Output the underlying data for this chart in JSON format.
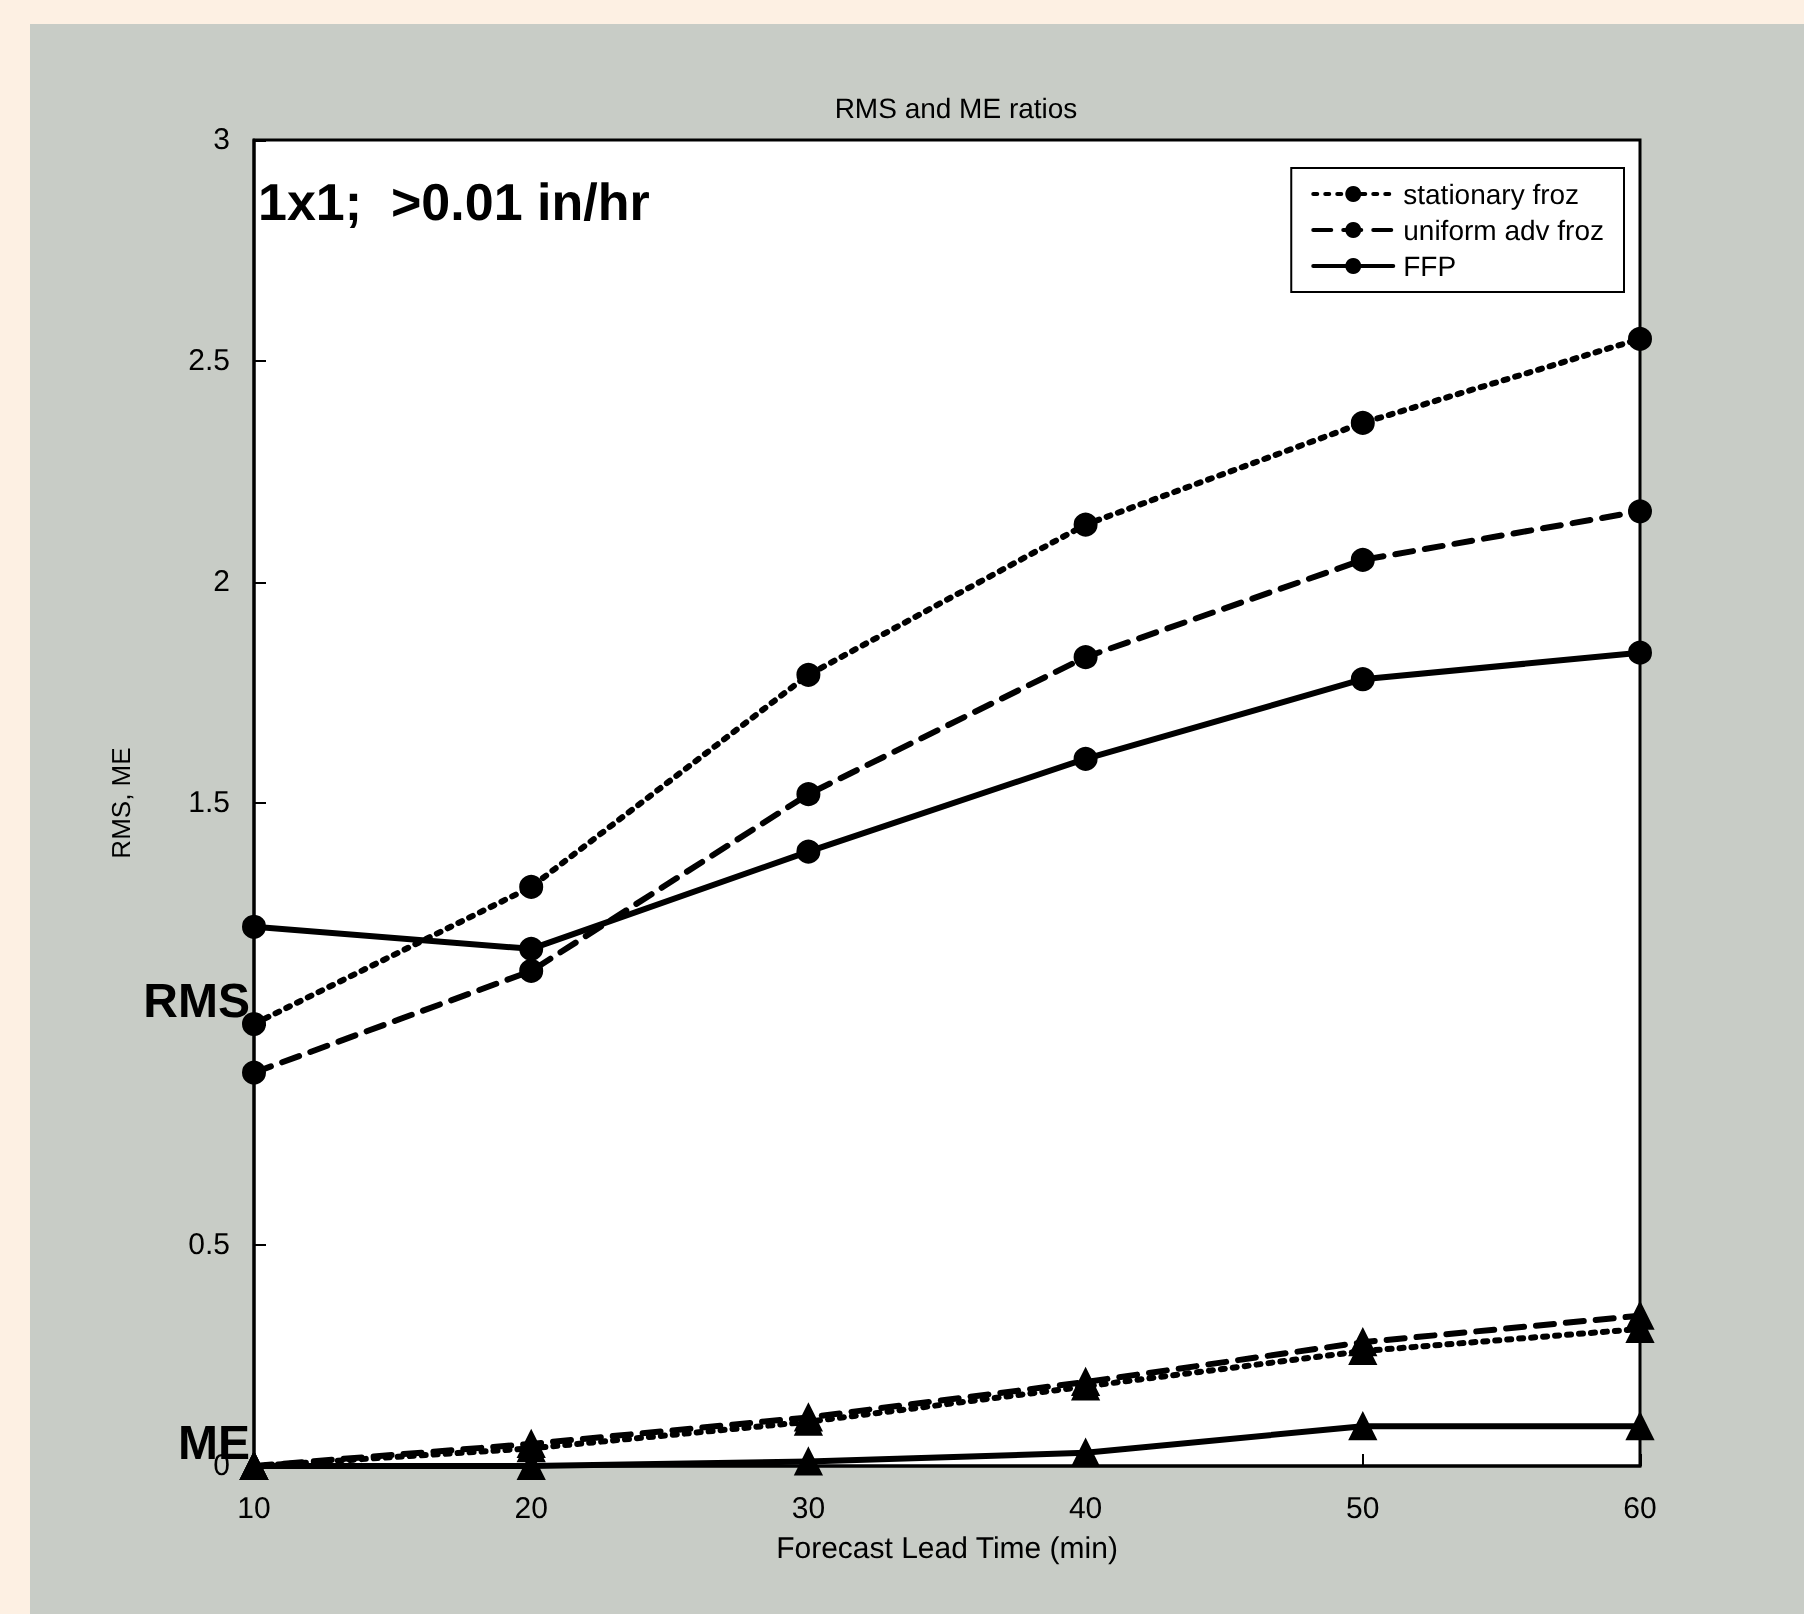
{
  "chart_data": {
    "type": "line",
    "title": "RMS and ME ratios",
    "xlabel": "Forecast Lead Time (min)",
    "ylabel": "RMS, ME",
    "annotations": [
      "1x1;  >0.01 in/hr",
      {
        "text": "RMS",
        "x": 10,
        "y": 1
      },
      {
        "text": "ME",
        "x": 10,
        "y": 0
      }
    ],
    "x": [
      10,
      20,
      30,
      40,
      50,
      60
    ],
    "series": [
      {
        "name": "stationary froz",
        "color": "#000000",
        "line_style": "dotted",
        "marker": "circle",
        "values": [
          1.0,
          1.31,
          1.79,
          2.13,
          2.36,
          2.55
        ]
      },
      {
        "name": "uniform adv froz",
        "color": "#000000",
        "line_style": "dashed",
        "marker": "circle",
        "values": [
          0.89,
          1.12,
          1.52,
          1.83,
          2.05,
          2.16
        ]
      },
      {
        "name": "FFP",
        "color": "#000000",
        "line_style": "solid",
        "marker": "circle",
        "values": [
          1.22,
          1.17,
          1.39,
          1.6,
          1.78,
          1.84
        ]
      },
      {
        "color": "#000000",
        "line_style": "dotted",
        "marker": "triangle",
        "values": [
          0,
          0.04,
          0.1,
          0.18,
          0.26,
          0.31
        ]
      },
      {
        "color": "#000000",
        "line_style": "dashed",
        "marker": "triangle",
        "values": [
          0,
          0.05,
          0.11,
          0.19,
          0.28,
          0.34
        ]
      },
      {
        "color": "#000000",
        "line_style": "solid",
        "marker": "triangle",
        "values": [
          0,
          0,
          0.01,
          0.03,
          0.09,
          0.09
        ]
      }
    ],
    "xlim": [
      10,
      60
    ],
    "xticks": [
      10,
      20,
      30,
      40,
      50,
      60
    ],
    "ylim": [
      0,
      3
    ],
    "yticks": [
      0,
      0.5,
      {
        "value": 1,
        "label": null
      },
      1.5,
      2,
      2.5,
      3
    ],
    "grid": false,
    "legend": "top right"
  }
}
